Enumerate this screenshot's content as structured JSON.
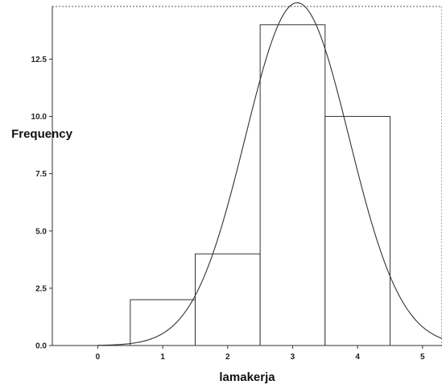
{
  "chart_data": {
    "type": "bar",
    "title": "",
    "xlabel": "lamakerja",
    "ylabel": "Frequency",
    "xlim": [
      -0.7,
      5.3
    ],
    "ylim": [
      0,
      14.8
    ],
    "x_ticks": [
      0,
      1,
      2,
      3,
      4,
      5
    ],
    "y_ticks": [
      0.0,
      2.5,
      5.0,
      7.5,
      10.0,
      12.5
    ],
    "x_tick_labels": [
      "0",
      "1",
      "2",
      "3",
      "4",
      "5"
    ],
    "y_tick_labels": [
      "0.0",
      "2.5",
      "5.0",
      "7.5",
      "10.0",
      "12.5"
    ],
    "bins": [
      {
        "center": 1,
        "width": 1,
        "value": 2
      },
      {
        "center": 2,
        "width": 1,
        "value": 4
      },
      {
        "center": 3,
        "width": 1,
        "value": 14
      },
      {
        "center": 4,
        "width": 1,
        "value": 10
      }
    ],
    "normal_curve": {
      "mean": 3.07,
      "std_dev": 0.8,
      "n": 30,
      "bin_width": 1
    },
    "grid": false,
    "colors": {
      "bar_fill": "#ffffff",
      "bar_stroke": "#333333",
      "curve": "#333333",
      "axis": "#333333"
    }
  }
}
